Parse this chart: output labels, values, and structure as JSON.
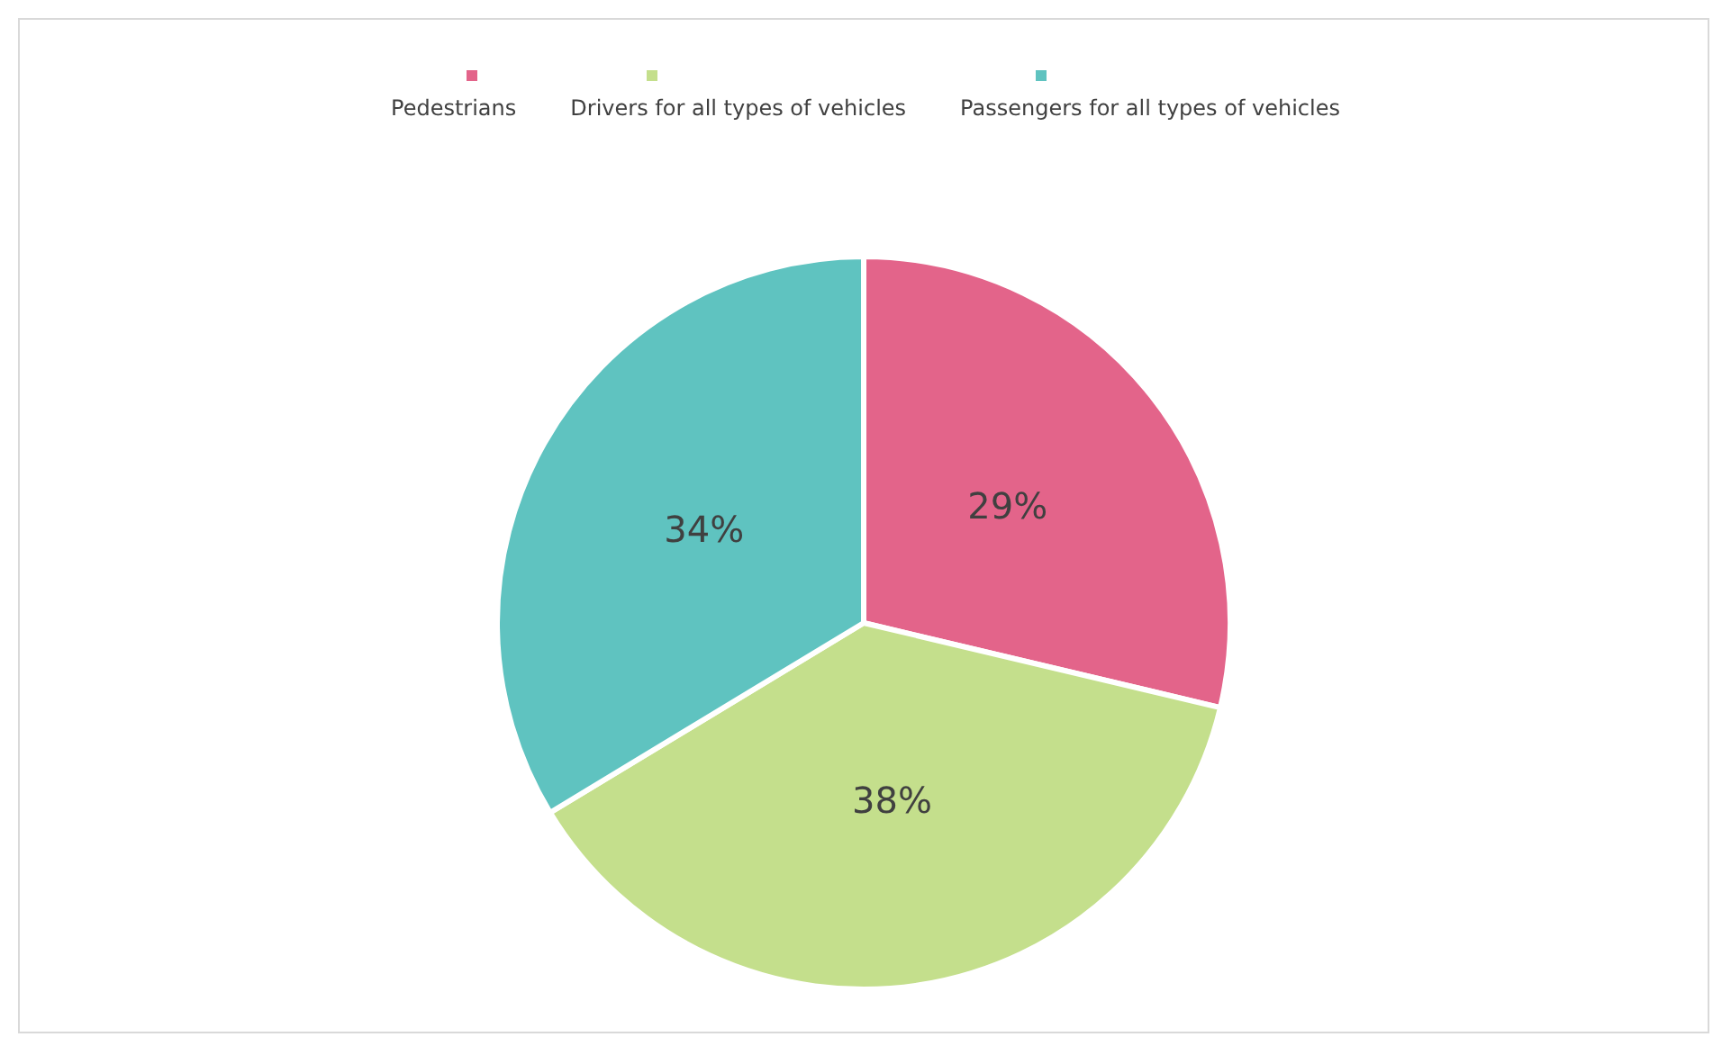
{
  "chart_data": {
    "type": "pie",
    "categories": [
      "Pedestrians",
      "Drivers for all types of vehicles",
      "Passengers for all types of vehicles"
    ],
    "values": [
      29,
      38,
      34
    ],
    "colors": [
      "#e3648a",
      "#c4df8c",
      "#5fc3c0"
    ],
    "value_labels": [
      "29%",
      "38%",
      "34%"
    ],
    "legend": "top"
  }
}
